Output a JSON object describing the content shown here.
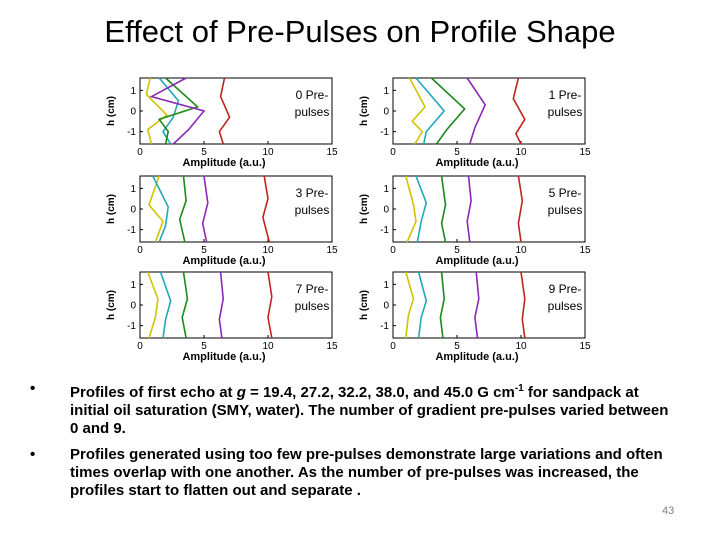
{
  "slide": {
    "title": "Effect of Pre-Pulses on Profile Shape",
    "page_number": "43",
    "bullets": [
      {
        "marker": "•",
        "parts": [
          {
            "t": "Profiles  of first echo at "
          },
          {
            "t": "g",
            "i": true
          },
          {
            "t": " = 19.4, 27.2, 32.2, 38.0, and 45.0 G cm"
          },
          {
            "t": "-1",
            "sup": true
          },
          {
            "t": " for sandpack at initial oil saturation (SMY, water).  The number of gradient pre-pulses varied between 0 and 9."
          }
        ]
      },
      {
        "marker": "•",
        "parts": [
          {
            "t": "Profiles generated using too few pre-pulses demonstrate large variations and often times overlap with one another. As the number of pre-pulses was increased, the profiles start to flatten out and separate ."
          }
        ]
      }
    ]
  },
  "chart_data": [
    {
      "type": "line",
      "label": "0 Pre-\npulses",
      "xlabel": "Amplitude (a.u.)",
      "ylabel": "h (cm)",
      "xlim": [
        0,
        15
      ],
      "ylim": [
        -1.6,
        1.6
      ],
      "xticks": [
        "0",
        "5",
        "10",
        "15"
      ],
      "yticks": [
        "1",
        "0",
        "-1"
      ],
      "series": [
        {
          "color": "#d4c200",
          "points": [
            [
              0.8,
              1.6
            ],
            [
              0.5,
              0.8
            ],
            [
              2.1,
              -0.2
            ],
            [
              0.6,
              -0.9
            ],
            [
              0.9,
              -1.6
            ]
          ]
        },
        {
          "color": "#22a7b8",
          "points": [
            [
              1.5,
              1.6
            ],
            [
              3.0,
              0.5
            ],
            [
              2.6,
              -0.3
            ],
            [
              1.8,
              -1.0
            ],
            [
              2.4,
              -1.6
            ]
          ]
        },
        {
          "color": "#1a8a1a",
          "points": [
            [
              2.0,
              1.6
            ],
            [
              4.5,
              0.2
            ],
            [
              1.5,
              -0.4
            ],
            [
              2.2,
              -1.0
            ],
            [
              2.0,
              -1.6
            ]
          ]
        },
        {
          "color": "#8a28b8",
          "points": [
            [
              3.6,
              1.6
            ],
            [
              0.9,
              0.7
            ],
            [
              5.0,
              0.0
            ],
            [
              3.8,
              -0.9
            ],
            [
              2.6,
              -1.6
            ]
          ]
        },
        {
          "color": "#c0241c",
          "points": [
            [
              6.6,
              1.6
            ],
            [
              6.3,
              0.7
            ],
            [
              7.0,
              -0.3
            ],
            [
              6.2,
              -1.0
            ],
            [
              6.5,
              -1.6
            ]
          ]
        }
      ]
    },
    {
      "type": "line",
      "label": "1 Pre-\npulses",
      "xlabel": "Amplitude (a.u.)",
      "ylabel": "h (cm)",
      "xlim": [
        0,
        15
      ],
      "ylim": [
        -1.6,
        1.6
      ],
      "xticks": [
        "0",
        "5",
        "10",
        "15"
      ],
      "yticks": [
        "1",
        "0",
        "-1"
      ],
      "series": [
        {
          "color": "#d4c200",
          "points": [
            [
              1.3,
              1.6
            ],
            [
              2.5,
              0.2
            ],
            [
              1.5,
              -0.5
            ],
            [
              2.3,
              -1.0
            ],
            [
              1.7,
              -1.6
            ]
          ]
        },
        {
          "color": "#22a7b8",
          "points": [
            [
              1.8,
              1.6
            ],
            [
              4.0,
              0.0
            ],
            [
              2.6,
              -1.0
            ],
            [
              2.4,
              -1.6
            ]
          ]
        },
        {
          "color": "#1a8a1a",
          "points": [
            [
              3.0,
              1.6
            ],
            [
              5.6,
              0.1
            ],
            [
              4.2,
              -0.9
            ],
            [
              3.4,
              -1.6
            ]
          ]
        },
        {
          "color": "#8a28b8",
          "points": [
            [
              5.8,
              1.6
            ],
            [
              7.2,
              0.3
            ],
            [
              6.4,
              -0.8
            ],
            [
              6.0,
              -1.6
            ]
          ]
        },
        {
          "color": "#c0241c",
          "points": [
            [
              9.8,
              1.6
            ],
            [
              9.4,
              0.6
            ],
            [
              10.3,
              -0.4
            ],
            [
              9.6,
              -1.1
            ],
            [
              10.0,
              -1.6
            ]
          ]
        }
      ]
    },
    {
      "type": "line",
      "label": "3 Pre-\npulses",
      "xlabel": "Amplitude (a.u.)",
      "ylabel": "h (cm)",
      "xlim": [
        0,
        15
      ],
      "ylim": [
        -1.6,
        1.6
      ],
      "xticks": [
        "0",
        "5",
        "10",
        "15"
      ],
      "yticks": [
        "1",
        "0",
        "-1"
      ],
      "series": [
        {
          "color": "#d4c200",
          "points": [
            [
              1.5,
              1.6
            ],
            [
              0.7,
              0.2
            ],
            [
              1.8,
              -0.6
            ],
            [
              1.2,
              -1.6
            ]
          ]
        },
        {
          "color": "#22a7b8",
          "points": [
            [
              1.0,
              1.6
            ],
            [
              2.2,
              0.1
            ],
            [
              2.0,
              -0.8
            ],
            [
              1.5,
              -1.6
            ]
          ]
        },
        {
          "color": "#1a8a1a",
          "points": [
            [
              3.4,
              1.6
            ],
            [
              3.6,
              0.4
            ],
            [
              3.1,
              -0.5
            ],
            [
              3.5,
              -1.6
            ]
          ]
        },
        {
          "color": "#8a28b8",
          "points": [
            [
              5.0,
              1.6
            ],
            [
              5.3,
              0.3
            ],
            [
              4.9,
              -0.7
            ],
            [
              5.2,
              -1.6
            ]
          ]
        },
        {
          "color": "#c0241c",
          "points": [
            [
              9.7,
              1.6
            ],
            [
              10.0,
              0.5
            ],
            [
              9.6,
              -0.4
            ],
            [
              10.1,
              -1.6
            ]
          ]
        }
      ]
    },
    {
      "type": "line",
      "label": "5 Pre-\npulses",
      "xlabel": "Amplitude (a.u.)",
      "ylabel": "h (cm)",
      "xlim": [
        0,
        15
      ],
      "ylim": [
        -1.6,
        1.6
      ],
      "xticks": [
        "0",
        "5",
        "10",
        "15"
      ],
      "yticks": [
        "1",
        "0",
        "-1"
      ],
      "series": [
        {
          "color": "#d4c200",
          "points": [
            [
              1.0,
              1.6
            ],
            [
              1.6,
              0.2
            ],
            [
              1.8,
              -0.6
            ],
            [
              1.1,
              -1.6
            ]
          ]
        },
        {
          "color": "#22a7b8",
          "points": [
            [
              1.8,
              1.6
            ],
            [
              2.6,
              0.3
            ],
            [
              2.2,
              -0.6
            ],
            [
              1.9,
              -1.6
            ]
          ]
        },
        {
          "color": "#1a8a1a",
          "points": [
            [
              3.8,
              1.6
            ],
            [
              4.1,
              0.2
            ],
            [
              3.8,
              -0.7
            ],
            [
              4.1,
              -1.6
            ]
          ]
        },
        {
          "color": "#8a28b8",
          "points": [
            [
              5.9,
              1.6
            ],
            [
              6.1,
              0.4
            ],
            [
              5.8,
              -0.6
            ],
            [
              6.0,
              -1.6
            ]
          ]
        },
        {
          "color": "#c0241c",
          "points": [
            [
              9.8,
              1.6
            ],
            [
              10.1,
              0.4
            ],
            [
              9.8,
              -0.7
            ],
            [
              10.0,
              -1.6
            ]
          ]
        }
      ]
    },
    {
      "type": "line",
      "label": "7 Pre-\npulses",
      "xlabel": "Amplitude (a.u.)",
      "ylabel": "h (cm)",
      "xlim": [
        0,
        15
      ],
      "ylim": [
        -1.6,
        1.6
      ],
      "xticks": [
        "0",
        "5",
        "10",
        "15"
      ],
      "yticks": [
        "1",
        "0",
        "-1"
      ],
      "series": [
        {
          "color": "#d4c200",
          "points": [
            [
              0.6,
              1.6
            ],
            [
              1.4,
              0.3
            ],
            [
              1.2,
              -0.6
            ],
            [
              0.7,
              -1.6
            ]
          ]
        },
        {
          "color": "#22a7b8",
          "points": [
            [
              1.6,
              1.6
            ],
            [
              2.4,
              0.2
            ],
            [
              2.0,
              -0.7
            ],
            [
              1.8,
              -1.6
            ]
          ]
        },
        {
          "color": "#1a8a1a",
          "points": [
            [
              3.4,
              1.6
            ],
            [
              3.7,
              0.3
            ],
            [
              3.3,
              -0.6
            ],
            [
              3.6,
              -1.6
            ]
          ]
        },
        {
          "color": "#8a28b8",
          "points": [
            [
              6.3,
              1.6
            ],
            [
              6.5,
              0.3
            ],
            [
              6.2,
              -0.7
            ],
            [
              6.4,
              -1.6
            ]
          ]
        },
        {
          "color": "#c0241c",
          "points": [
            [
              10.0,
              1.6
            ],
            [
              10.3,
              0.4
            ],
            [
              10.0,
              -0.6
            ],
            [
              10.3,
              -1.6
            ]
          ]
        }
      ]
    },
    {
      "type": "line",
      "label": "9 Pre-\npulses",
      "xlabel": "Amplitude (a.u.)",
      "ylabel": "h (cm)",
      "xlim": [
        0,
        15
      ],
      "ylim": [
        -1.6,
        1.6
      ],
      "xticks": [
        "0",
        "5",
        "10",
        "15"
      ],
      "yticks": [
        "1",
        "0",
        "-1"
      ],
      "series": [
        {
          "color": "#d4c200",
          "points": [
            [
              1.0,
              1.6
            ],
            [
              1.6,
              0.3
            ],
            [
              1.2,
              -0.5
            ],
            [
              1.0,
              -1.6
            ]
          ]
        },
        {
          "color": "#22a7b8",
          "points": [
            [
              2.0,
              1.6
            ],
            [
              2.6,
              0.2
            ],
            [
              2.2,
              -0.6
            ],
            [
              2.0,
              -1.6
            ]
          ]
        },
        {
          "color": "#1a8a1a",
          "points": [
            [
              3.8,
              1.6
            ],
            [
              4.0,
              0.3
            ],
            [
              3.7,
              -0.6
            ],
            [
              3.9,
              -1.6
            ]
          ]
        },
        {
          "color": "#8a28b8",
          "points": [
            [
              6.5,
              1.6
            ],
            [
              6.7,
              0.3
            ],
            [
              6.4,
              -0.6
            ],
            [
              6.6,
              -1.6
            ]
          ]
        },
        {
          "color": "#c0241c",
          "points": [
            [
              10.0,
              1.6
            ],
            [
              10.3,
              0.3
            ],
            [
              10.1,
              -0.7
            ],
            [
              10.3,
              -1.6
            ]
          ]
        }
      ]
    }
  ]
}
